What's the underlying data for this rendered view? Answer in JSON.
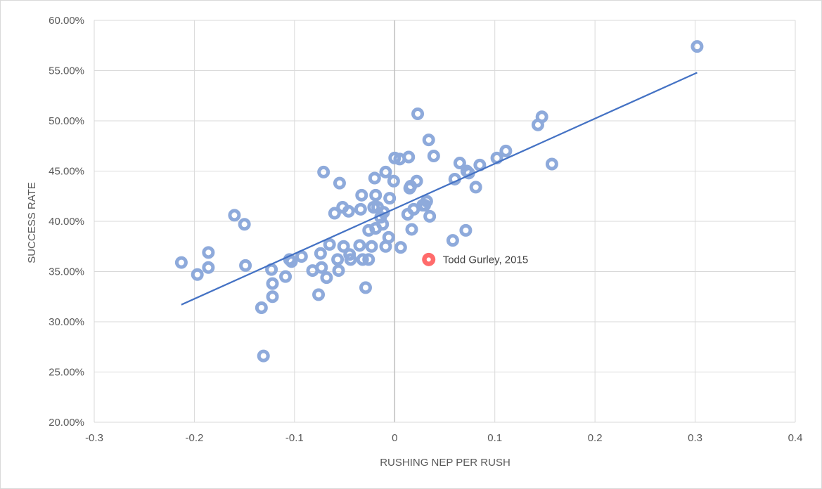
{
  "chart_data": {
    "type": "scatter",
    "title": "",
    "xlabel": "RUSHING NEP PER RUSH",
    "ylabel": "SUCCESS RATE",
    "xlim": [
      -0.3,
      0.4
    ],
    "ylim": [
      0.2,
      0.6
    ],
    "x_ticks": [
      "-0.3",
      "-0.2",
      "-0.1",
      "0",
      "0.1",
      "0.2",
      "0.3",
      "0.4"
    ],
    "y_ticks": [
      "20.00%",
      "25.00%",
      "30.00%",
      "35.00%",
      "40.00%",
      "45.00%",
      "50.00%",
      "55.00%",
      "60.00%"
    ],
    "grid": "vertical and horizontal major gridlines",
    "legend": "none",
    "colors": {
      "points": "#8eaadb",
      "trendline": "#4472c4",
      "highlight": "#ff6b6b",
      "grid": "#d9d9d9"
    },
    "trendline": {
      "type": "linear",
      "from": [
        -0.213,
        0.317
      ],
      "to": [
        0.302,
        0.548
      ]
    },
    "points": [
      [
        -0.213,
        0.359
      ],
      [
        -0.197,
        0.347
      ],
      [
        -0.186,
        0.369
      ],
      [
        -0.186,
        0.354
      ],
      [
        -0.16,
        0.406
      ],
      [
        -0.15,
        0.397
      ],
      [
        -0.149,
        0.356
      ],
      [
        -0.133,
        0.314
      ],
      [
        -0.131,
        0.266
      ],
      [
        -0.123,
        0.352
      ],
      [
        -0.122,
        0.338
      ],
      [
        -0.122,
        0.325
      ],
      [
        -0.109,
        0.345
      ],
      [
        -0.105,
        0.362
      ],
      [
        -0.103,
        0.36
      ],
      [
        -0.093,
        0.365
      ],
      [
        -0.082,
        0.351
      ],
      [
        -0.076,
        0.327
      ],
      [
        -0.074,
        0.368
      ],
      [
        -0.073,
        0.354
      ],
      [
        -0.071,
        0.449
      ],
      [
        -0.068,
        0.344
      ],
      [
        -0.065,
        0.377
      ],
      [
        -0.06,
        0.408
      ],
      [
        -0.057,
        0.362
      ],
      [
        -0.056,
        0.351
      ],
      [
        -0.055,
        0.438
      ],
      [
        -0.052,
        0.414
      ],
      [
        -0.051,
        0.375
      ],
      [
        -0.046,
        0.41
      ],
      [
        -0.045,
        0.367
      ],
      [
        -0.044,
        0.362
      ],
      [
        -0.035,
        0.376
      ],
      [
        -0.034,
        0.412
      ],
      [
        -0.033,
        0.426
      ],
      [
        -0.032,
        0.362
      ],
      [
        -0.029,
        0.334
      ],
      [
        -0.026,
        0.362
      ],
      [
        -0.026,
        0.391
      ],
      [
        -0.023,
        0.375
      ],
      [
        -0.021,
        0.414
      ],
      [
        -0.02,
        0.443
      ],
      [
        -0.019,
        0.426
      ],
      [
        -0.019,
        0.393
      ],
      [
        -0.017,
        0.414
      ],
      [
        -0.014,
        0.404
      ],
      [
        -0.012,
        0.397
      ],
      [
        -0.011,
        0.409
      ],
      [
        -0.009,
        0.375
      ],
      [
        -0.009,
        0.449
      ],
      [
        -0.006,
        0.384
      ],
      [
        -0.005,
        0.423
      ],
      [
        -0.001,
        0.44
      ],
      [
        0.0,
        0.463
      ],
      [
        0.005,
        0.462
      ],
      [
        0.006,
        0.374
      ],
      [
        0.013,
        0.407
      ],
      [
        0.014,
        0.464
      ],
      [
        0.015,
        0.433
      ],
      [
        0.016,
        0.435
      ],
      [
        0.017,
        0.392
      ],
      [
        0.019,
        0.412
      ],
      [
        0.022,
        0.44
      ],
      [
        0.023,
        0.507
      ],
      [
        0.028,
        0.416
      ],
      [
        0.03,
        0.416
      ],
      [
        0.032,
        0.42
      ],
      [
        0.034,
        0.481
      ],
      [
        0.035,
        0.405
      ],
      [
        0.039,
        0.465
      ],
      [
        0.058,
        0.381
      ],
      [
        0.06,
        0.442
      ],
      [
        0.065,
        0.458
      ],
      [
        0.071,
        0.391
      ],
      [
        0.072,
        0.45
      ],
      [
        0.074,
        0.448
      ],
      [
        0.081,
        0.434
      ],
      [
        0.085,
        0.456
      ],
      [
        0.102,
        0.463
      ],
      [
        0.111,
        0.47
      ],
      [
        0.143,
        0.496
      ],
      [
        0.147,
        0.504
      ],
      [
        0.157,
        0.457
      ],
      [
        0.302,
        0.574
      ]
    ],
    "highlight": {
      "label": "Todd Gurley, 2015",
      "x": 0.034,
      "y": 0.362
    }
  }
}
